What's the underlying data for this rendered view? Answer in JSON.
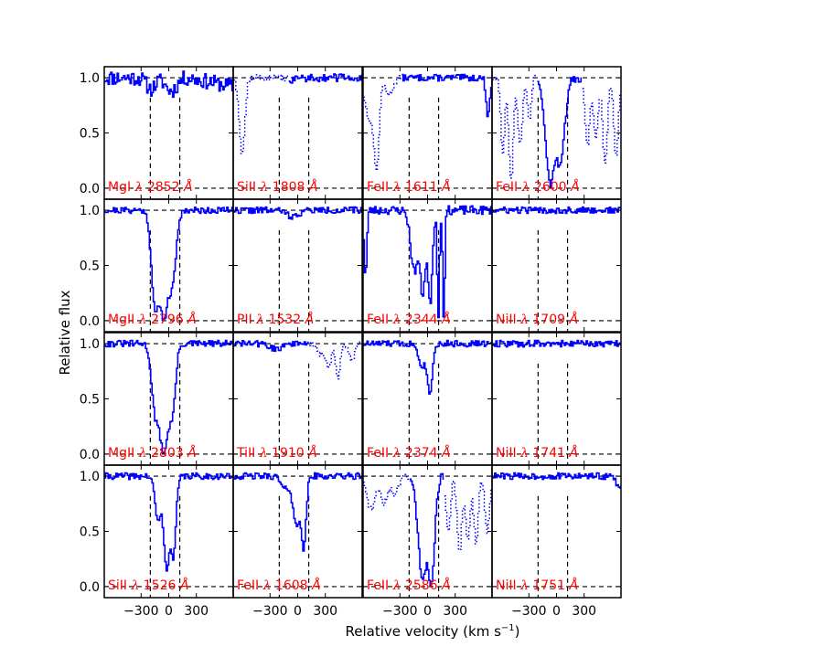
{
  "chart_data": {
    "type": "line",
    "xlabel": "Relative velocity (km s",
    "xlabel_sup": "−1",
    "xlabel_close": ")",
    "ylabel": "Relative flux",
    "xlim": [
      -700,
      700
    ],
    "ylim": [
      -0.1,
      1.1
    ],
    "x_ticks": [
      -300,
      0,
      300
    ],
    "x_tick_labels": [
      "−300",
      "0",
      "300"
    ],
    "y_ticks": [
      0.0,
      0.5,
      1.0
    ],
    "y_tick_labels": [
      "0.0",
      "0.5",
      "1.0"
    ],
    "reference_lines": {
      "y_continuum": 1.0,
      "y_zero": 0.0,
      "x_lower": -200,
      "x_upper": 120
    },
    "colors": {
      "spectrum": "#0000ff",
      "label": "#ff0000",
      "reference": "#000000"
    },
    "grid": false,
    "panels": [
      {
        "row": 0,
        "col": 0,
        "ion": "MgI",
        "wavelength": "2852",
        "components": [
          {
            "v": -200,
            "depth": 0.1,
            "width": 50
          },
          {
            "v": 20,
            "depth": 0.12,
            "width": 60
          }
        ],
        "slope": -0.08,
        "noise": 0.07,
        "blends": [],
        "seed": 11
      },
      {
        "row": 0,
        "col": 1,
        "ion": "SiII",
        "wavelength": "1808",
        "components": [
          {
            "v": -100,
            "depth": 0.03,
            "width": 50
          }
        ],
        "slope": 0,
        "noise": 0.035,
        "blends": [
          {
            "x0": -700,
            "x1": -430,
            "features": [
              {
                "v": -610,
                "depth": 0.7,
                "width": 30
              }
            ]
          },
          {
            "x0": -430,
            "x1": -110,
            "features": []
          }
        ],
        "seed": 12
      },
      {
        "row": 0,
        "col": 2,
        "ion": "FeII",
        "wavelength": "1611",
        "components": [
          {
            "v": 650,
            "depth": 0.35,
            "width": 20
          }
        ],
        "slope": 0,
        "noise": 0.03,
        "blends": [
          {
            "x0": -700,
            "x1": -280,
            "features": [
              {
                "v": -620,
                "depth": 0.4,
                "width": 60
              },
              {
                "v": -560,
                "depth": 0.8,
                "width": 25
              },
              {
                "v": -420,
                "depth": 0.15,
                "width": 40
              }
            ]
          }
        ],
        "seed": 13
      },
      {
        "row": 0,
        "col": 3,
        "ion": "FeII",
        "wavelength": "2600",
        "components": [
          {
            "v": -70,
            "depth": 0.96,
            "width": 55
          },
          {
            "v": 30,
            "depth": 0.75,
            "width": 40
          },
          {
            "v": 90,
            "depth": 0.2,
            "width": 25
          }
        ],
        "slope": 0,
        "noise": 0.04,
        "blends": [
          {
            "x0": -700,
            "x1": -210,
            "features": [
              {
                "v": -590,
                "depth": 0.7,
                "width": 20
              },
              {
                "v": -500,
                "depth": 0.9,
                "width": 25
              },
              {
                "v": -400,
                "depth": 0.6,
                "width": 25
              },
              {
                "v": -300,
                "depth": 0.4,
                "width": 20
              }
            ]
          },
          {
            "x0": 280,
            "x1": 700,
            "features": [
              {
                "v": 330,
                "depth": 0.6,
                "width": 25
              },
              {
                "v": 420,
                "depth": 0.55,
                "width": 25
              },
              {
                "v": 520,
                "depth": 0.8,
                "width": 25
              },
              {
                "v": 640,
                "depth": 0.7,
                "width": 25
              }
            ]
          }
        ],
        "seed": 14
      },
      {
        "row": 1,
        "col": 0,
        "ion": "MgII",
        "wavelength": "2796",
        "components": [
          {
            "v": -150,
            "depth": 0.9,
            "width": 40
          },
          {
            "v": -60,
            "depth": 0.98,
            "width": 60
          },
          {
            "v": 30,
            "depth": 0.6,
            "width": 40
          }
        ],
        "slope": 0,
        "noise": 0.03,
        "blends": [],
        "seed": 21
      },
      {
        "row": 1,
        "col": 1,
        "ion": "PII",
        "wavelength": "1532",
        "components": [
          {
            "v": -60,
            "depth": 0.06,
            "width": 60
          }
        ],
        "slope": 0,
        "noise": 0.03,
        "blends": [],
        "seed": 22
      },
      {
        "row": 1,
        "col": 2,
        "ion": "FeII",
        "wavelength": "2344",
        "components": [
          {
            "v": -680,
            "depth": 0.6,
            "width": 15
          },
          {
            "v": -150,
            "depth": 0.55,
            "width": 40
          },
          {
            "v": -60,
            "depth": 0.75,
            "width": 30
          },
          {
            "v": 20,
            "depth": 0.85,
            "width": 25
          },
          {
            "v": 110,
            "depth": 0.95,
            "width": 12
          },
          {
            "v": 170,
            "depth": 0.95,
            "width": 12
          }
        ],
        "slope": 0,
        "noise": 0.04,
        "blends": [],
        "seed": 23
      },
      {
        "row": 1,
        "col": 3,
        "ion": "NiII",
        "wavelength": "1709",
        "components": [],
        "slope": 0,
        "noise": 0.03,
        "blends": [],
        "seed": 24
      },
      {
        "row": 2,
        "col": 0,
        "ion": "MgII",
        "wavelength": "2803",
        "components": [
          {
            "v": -150,
            "depth": 0.55,
            "width": 40
          },
          {
            "v": -60,
            "depth": 0.98,
            "width": 60
          },
          {
            "v": 30,
            "depth": 0.55,
            "width": 35
          }
        ],
        "slope": 0,
        "noise": 0.03,
        "blends": [],
        "seed": 31
      },
      {
        "row": 2,
        "col": 1,
        "ion": "TiII",
        "wavelength": "1910",
        "components": [
          {
            "v": -250,
            "depth": 0.05,
            "width": 60
          }
        ],
        "slope": 0,
        "noise": 0.03,
        "blends": [
          {
            "x0": 120,
            "x1": 700,
            "features": [
              {
                "v": 250,
                "depth": 0.1,
                "width": 40
              },
              {
                "v": 330,
                "depth": 0.22,
                "width": 25
              },
              {
                "v": 430,
                "depth": 0.3,
                "width": 25
              },
              {
                "v": 580,
                "depth": 0.15,
                "width": 30
              }
            ]
          }
        ],
        "seed": 32
      },
      {
        "row": 2,
        "col": 2,
        "ion": "FeII",
        "wavelength": "2374",
        "components": [
          {
            "v": -60,
            "depth": 0.2,
            "width": 40
          },
          {
            "v": 20,
            "depth": 0.45,
            "width": 25
          }
        ],
        "slope": 0,
        "noise": 0.03,
        "blends": [],
        "seed": 33
      },
      {
        "row": 2,
        "col": 3,
        "ion": "NiII",
        "wavelength": "1741",
        "components": [],
        "slope": 0,
        "noise": 0.03,
        "blends": [],
        "seed": 34
      },
      {
        "row": 3,
        "col": 0,
        "ion": "SiII",
        "wavelength": "1526",
        "components": [
          {
            "v": -120,
            "depth": 0.4,
            "width": 35
          },
          {
            "v": -30,
            "depth": 0.85,
            "width": 30
          },
          {
            "v": 40,
            "depth": 0.75,
            "width": 30
          }
        ],
        "slope": 0,
        "noise": 0.03,
        "blends": [],
        "seed": 41
      },
      {
        "row": 3,
        "col": 1,
        "ion": "FeII",
        "wavelength": "1608",
        "components": [
          {
            "v": -150,
            "depth": 0.12,
            "width": 40
          },
          {
            "v": -20,
            "depth": 0.45,
            "width": 40
          },
          {
            "v": 60,
            "depth": 0.65,
            "width": 25
          }
        ],
        "slope": 0,
        "noise": 0.03,
        "blends": [],
        "seed": 42
      },
      {
        "row": 3,
        "col": 2,
        "ion": "FeII",
        "wavelength": "2586",
        "components": [
          {
            "v": -60,
            "depth": 0.9,
            "width": 50
          },
          {
            "v": 30,
            "depth": 0.95,
            "width": 40
          }
        ],
        "slope": 0,
        "noise": 0.04,
        "blends": [
          {
            "x0": -700,
            "x1": -200,
            "features": [
              {
                "v": -620,
                "depth": 0.3,
                "width": 40
              },
              {
                "v": -480,
                "depth": 0.25,
                "width": 40
              },
              {
                "v": -360,
                "depth": 0.15,
                "width": 40
              }
            ]
          },
          {
            "x0": 180,
            "x1": 700,
            "features": [
              {
                "v": 220,
                "depth": 0.5,
                "width": 25
              },
              {
                "v": 340,
                "depth": 0.7,
                "width": 25
              },
              {
                "v": 430,
                "depth": 0.6,
                "width": 25
              },
              {
                "v": 520,
                "depth": 0.6,
                "width": 25
              },
              {
                "v": 640,
                "depth": 0.5,
                "width": 25
              }
            ]
          }
        ],
        "seed": 43
      },
      {
        "row": 3,
        "col": 3,
        "ion": "NiII",
        "wavelength": "1751",
        "components": [
          {
            "v": 670,
            "depth": 0.12,
            "width": 25
          }
        ],
        "slope": 0,
        "noise": 0.03,
        "blends": [],
        "seed": 44
      }
    ]
  }
}
